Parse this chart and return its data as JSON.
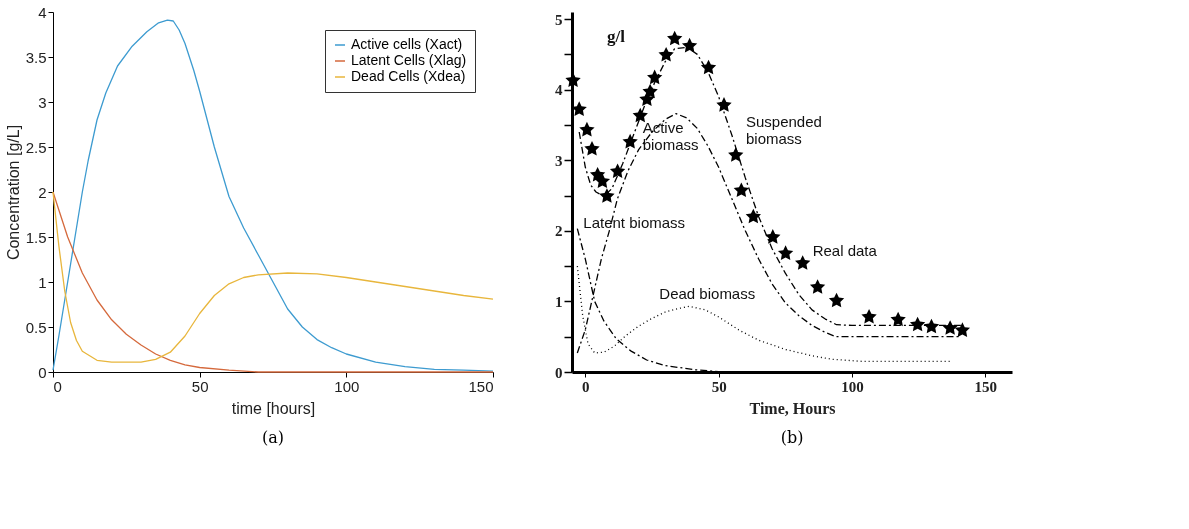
{
  "chart_data": [
    {
      "type": "line",
      "xlabel": "time [hours]",
      "ylabel": "Concentration [g/L]",
      "annotations": [
        "(a)"
      ],
      "legend": "top right",
      "grid": false,
      "marker": "none",
      "line_style": "solid",
      "xlim": [
        0,
        150
      ],
      "xticks": [
        0,
        50,
        100,
        150
      ],
      "ylim": [
        0,
        4
      ],
      "yticks": [
        0,
        0.5,
        1,
        1.5,
        2,
        2.5,
        3,
        3.5,
        4
      ],
      "series": [
        {
          "name": "Active cells (Xact)",
          "color": "#3d9bd0",
          "x": [
            0,
            2,
            4,
            6,
            8,
            10,
            12,
            15,
            18,
            22,
            27,
            32,
            36,
            39,
            41,
            43,
            45,
            48,
            50,
            55,
            60,
            65,
            70,
            75,
            80,
            85,
            90,
            95,
            100,
            110,
            120,
            130,
            140,
            150
          ],
          "values": [
            0.02,
            0.4,
            0.8,
            1.2,
            1.6,
            2.0,
            2.35,
            2.8,
            3.1,
            3.4,
            3.62,
            3.78,
            3.88,
            3.91,
            3.9,
            3.8,
            3.65,
            3.35,
            3.12,
            2.5,
            1.95,
            1.6,
            1.3,
            1.0,
            0.7,
            0.5,
            0.36,
            0.27,
            0.2,
            0.11,
            0.06,
            0.03,
            0.02,
            0.01
          ]
        },
        {
          "name": "Latent Cells (Xlag)",
          "color": "#d5693c",
          "x": [
            0,
            5,
            10,
            15,
            20,
            25,
            30,
            35,
            40,
            45,
            50,
            60,
            70,
            80,
            150
          ],
          "values": [
            2.0,
            1.5,
            1.1,
            0.8,
            0.58,
            0.42,
            0.3,
            0.2,
            0.13,
            0.08,
            0.05,
            0.02,
            0,
            0,
            0
          ]
        },
        {
          "name": "Dead Cells (Xdea)",
          "color": "#e8b63c",
          "x": [
            0,
            2,
            4,
            6,
            8,
            10,
            15,
            20,
            30,
            35,
            40,
            45,
            50,
            55,
            60,
            65,
            70,
            80,
            90,
            100,
            110,
            120,
            130,
            140,
            150
          ],
          "values": [
            2.0,
            1.4,
            0.9,
            0.55,
            0.35,
            0.23,
            0.13,
            0.11,
            0.11,
            0.14,
            0.22,
            0.4,
            0.65,
            0.85,
            0.98,
            1.05,
            1.08,
            1.1,
            1.09,
            1.05,
            1.0,
            0.95,
            0.9,
            0.85,
            0.81
          ]
        }
      ]
    },
    {
      "type": "line",
      "xlabel": "Time, Hours",
      "ylabel": "g/l",
      "annotations": [
        "(b)"
      ],
      "grid": false,
      "xlim": [
        -5,
        160
      ],
      "xticks": [
        0,
        50,
        100,
        150
      ],
      "ylim": [
        0,
        5.1
      ],
      "yticks": [
        0,
        {
          "value": 0.5,
          "label": null
        },
        1,
        {
          "value": 1.5,
          "label": null
        },
        2,
        {
          "value": 2.5,
          "label": null
        },
        3,
        {
          "value": 3.5,
          "label": null
        },
        4,
        {
          "value": 4.5,
          "label": null
        },
        5
      ],
      "series": [
        {
          "name": "Real data",
          "type": "scatter",
          "marker": "star",
          "color": "#000000",
          "x": [
            -4.6,
            -2.3,
            0.6,
            2.5,
            4.6,
            6.4,
            8.1,
            12.1,
            16.8,
            20.6,
            23.1,
            24.3,
            26.0,
            30.3,
            33.5,
            39.1,
            46.2,
            52.0,
            56.4,
            58.5,
            63.0,
            70.3,
            75.1,
            81.5,
            87.1,
            94.2,
            106.4,
            117.3,
            124.6,
            129.8,
            136.8,
            141.4
          ],
          "values": [
            4.13,
            3.72,
            3.43,
            3.16,
            2.79,
            2.7,
            2.49,
            2.84,
            3.26,
            3.63,
            3.86,
            3.97,
            4.17,
            4.49,
            4.72,
            4.62,
            4.31,
            3.78,
            3.07,
            2.57,
            2.2,
            1.91,
            1.68,
            1.54,
            1.2,
            1.01,
            0.78,
            0.74,
            0.67,
            0.64,
            0.62,
            0.59
          ]
        },
        {
          "name": "Suspended biomass",
          "type": "line",
          "line_style": "dashed",
          "color": "#000000",
          "x": [
            -2.3,
            0,
            2,
            4,
            7,
            10,
            14,
            18,
            22,
            26,
            30,
            33.5,
            38,
            42,
            46,
            50,
            55,
            60,
            65,
            70,
            75,
            80,
            85,
            90,
            94.2,
            100,
            141
          ],
          "values": [
            3.4,
            2.9,
            2.65,
            2.55,
            2.49,
            2.6,
            2.95,
            3.35,
            3.75,
            4.1,
            4.4,
            4.58,
            4.6,
            4.5,
            4.25,
            3.9,
            3.35,
            2.75,
            2.2,
            1.75,
            1.4,
            1.1,
            0.88,
            0.75,
            0.67,
            0.66,
            0.66
          ]
        },
        {
          "name": "Active biomass",
          "type": "line",
          "line_style": "dashed",
          "color": "#000000",
          "x": [
            -3,
            0,
            3,
            6,
            9,
            12,
            16,
            20,
            25,
            30,
            34,
            38,
            42,
            46,
            50,
            55,
            60,
            65,
            70,
            75,
            80,
            85,
            90,
            94,
            100,
            141
          ],
          "values": [
            0.27,
            0.6,
            1.1,
            1.6,
            2.0,
            2.45,
            2.85,
            3.15,
            3.4,
            3.58,
            3.66,
            3.6,
            3.45,
            3.2,
            2.9,
            2.45,
            2.0,
            1.6,
            1.25,
            0.98,
            0.8,
            0.66,
            0.56,
            0.5,
            0.5,
            0.5
          ]
        },
        {
          "name": "Latent biomass",
          "type": "line",
          "line_style": "dashed",
          "color": "#000000",
          "x": [
            -3,
            0,
            3.5,
            7,
            11.6,
            17,
            23,
            30,
            41.6,
            52
          ],
          "values": [
            2.03,
            1.6,
            1.0,
            0.72,
            0.47,
            0.3,
            0.17,
            0.09,
            0.03,
            0
          ]
        },
        {
          "name": "Dead biomass",
          "type": "line",
          "line_style": "dotted",
          "color": "#000000",
          "x": [
            -3,
            -1,
            1,
            3.5,
            7,
            11,
            15,
            20,
            25,
            30,
            35,
            39,
            45,
            50,
            57.8,
            65,
            75,
            85,
            92.5,
            104,
            137.6
          ],
          "values": [
            1.5,
            0.8,
            0.4,
            0.27,
            0.28,
            0.37,
            0.51,
            0.65,
            0.76,
            0.85,
            0.9,
            0.93,
            0.88,
            0.78,
            0.59,
            0.45,
            0.32,
            0.23,
            0.18,
            0.15,
            0.15
          ]
        }
      ]
    }
  ]
}
